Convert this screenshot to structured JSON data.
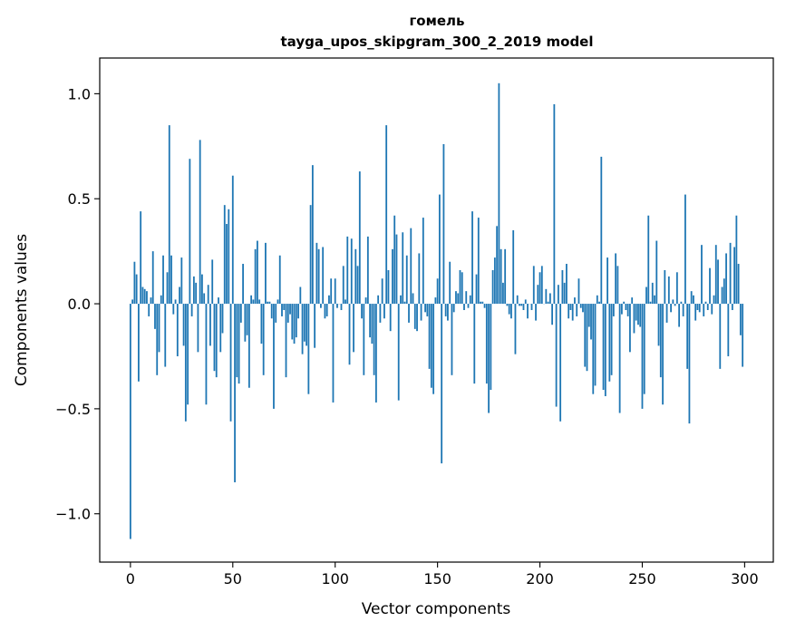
{
  "chart_data": {
    "type": "bar",
    "title": "гомель",
    "subtitle": "tayga_upos_skipgram_300_2_2019 model",
    "xlabel": "Vector components",
    "ylabel": "Components values",
    "xlim": [
      -15,
      314
    ],
    "ylim": [
      -1.23,
      1.17
    ],
    "xticks": [
      0,
      50,
      100,
      150,
      200,
      250,
      300
    ],
    "xtick_labels": [
      "0",
      "50",
      "100",
      "150",
      "200",
      "250",
      "300"
    ],
    "yticks": [
      -1.0,
      -0.5,
      0.0,
      0.5,
      1.0
    ],
    "ytick_labels": [
      "−1.0",
      "−0.5",
      "0.0",
      "0.5",
      "1.0"
    ],
    "bar_color": "#1f77b4",
    "values": [
      -1.12,
      0.02,
      0.2,
      0.14,
      -0.37,
      0.44,
      0.08,
      0.07,
      0.06,
      -0.06,
      0.03,
      0.25,
      -0.12,
      -0.34,
      -0.23,
      0.04,
      0.23,
      -0.3,
      0.15,
      0.85,
      0.23,
      -0.05,
      0.02,
      -0.25,
      0.08,
      0.22,
      -0.2,
      -0.56,
      -0.48,
      0.69,
      -0.06,
      0.13,
      0.1,
      -0.23,
      0.78,
      0.14,
      0.05,
      -0.48,
      0.09,
      -0.2,
      0.21,
      -0.32,
      -0.35,
      0.03,
      -0.23,
      -0.14,
      0.47,
      0.38,
      0.45,
      -0.56,
      0.61,
      -0.85,
      -0.35,
      -0.38,
      -0.09,
      0.19,
      -0.18,
      -0.15,
      -0.4,
      0.04,
      0.02,
      0.26,
      0.3,
      0.02,
      -0.19,
      -0.34,
      0.29,
      0.01,
      0.01,
      -0.07,
      -0.5,
      -0.09,
      0.02,
      0.23,
      -0.06,
      -0.03,
      -0.35,
      -0.09,
      -0.05,
      -0.17,
      -0.19,
      -0.16,
      -0.07,
      0.08,
      -0.24,
      -0.18,
      -0.2,
      -0.43,
      0.47,
      0.66,
      -0.21,
      0.29,
      0.26,
      -0.02,
      0.27,
      -0.07,
      -0.06,
      0.04,
      0.12,
      -0.47,
      0.12,
      -0.02,
      0.0,
      -0.03,
      0.18,
      0.02,
      0.32,
      -0.29,
      0.31,
      -0.23,
      0.26,
      0.18,
      0.63,
      -0.07,
      -0.34,
      0.03,
      0.32,
      -0.16,
      -0.19,
      -0.34,
      -0.47,
      0.04,
      -0.09,
      0.12,
      -0.07,
      0.85,
      0.16,
      -0.13,
      0.26,
      0.42,
      0.33,
      -0.46,
      0.04,
      0.34,
      0.01,
      0.23,
      -0.09,
      0.36,
      0.05,
      -0.12,
      -0.13,
      0.24,
      -0.08,
      0.41,
      -0.04,
      -0.06,
      -0.31,
      -0.4,
      -0.43,
      0.03,
      0.12,
      0.52,
      -0.76,
      0.76,
      -0.06,
      -0.08,
      0.2,
      -0.34,
      -0.04,
      0.06,
      0.05,
      0.16,
      0.15,
      -0.03,
      0.06,
      -0.02,
      0.04,
      0.44,
      -0.38,
      0.14,
      0.41,
      0.01,
      0.01,
      -0.02,
      -0.38,
      -0.52,
      -0.41,
      0.16,
      0.22,
      0.37,
      1.05,
      0.26,
      0.1,
      0.26,
      -0.01,
      -0.05,
      -0.07,
      0.35,
      -0.24,
      0.04,
      -0.01,
      -0.01,
      -0.03,
      0.02,
      -0.07,
      0.0,
      -0.03,
      0.18,
      -0.08,
      0.09,
      0.15,
      0.18,
      0.0,
      0.07,
      0.01,
      0.05,
      -0.1,
      0.95,
      -0.49,
      0.09,
      -0.56,
      0.16,
      0.1,
      0.19,
      -0.07,
      -0.03,
      -0.08,
      0.03,
      -0.06,
      0.12,
      -0.02,
      -0.04,
      -0.3,
      -0.32,
      -0.11,
      -0.17,
      -0.43,
      -0.39,
      0.04,
      0.01,
      0.7,
      -0.41,
      -0.44,
      0.22,
      -0.37,
      -0.34,
      -0.06,
      0.24,
      0.18,
      -0.52,
      -0.05,
      0.01,
      -0.03,
      -0.06,
      -0.23,
      0.03,
      -0.14,
      -0.08,
      -0.1,
      -0.11,
      -0.5,
      -0.43,
      0.08,
      0.42,
      0.01,
      0.1,
      0.04,
      0.3,
      -0.2,
      -0.35,
      -0.48,
      0.16,
      -0.09,
      0.13,
      -0.04,
      0.02,
      -0.01,
      0.15,
      -0.11,
      0.01,
      -0.06,
      0.52,
      -0.31,
      -0.57,
      0.06,
      0.04,
      -0.08,
      -0.03,
      -0.04,
      0.28,
      -0.06,
      0.01,
      -0.03,
      0.17,
      -0.05,
      0.04,
      0.28,
      0.21,
      -0.31,
      0.08,
      0.12,
      0.24,
      -0.25,
      0.29,
      -0.03,
      0.27,
      0.42,
      0.19,
      -0.15,
      -0.3
    ]
  }
}
